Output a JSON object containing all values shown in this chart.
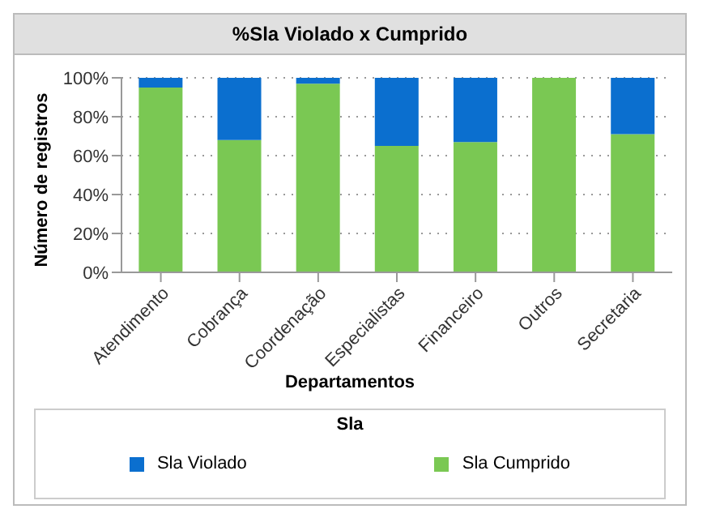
{
  "chart_data": {
    "type": "bar",
    "title": "%Sla Violado x Cumprido",
    "xlabel": "Departamentos",
    "ylabel": "Número de registros",
    "legend_title": "Sla",
    "categories": [
      "Atendimento",
      "Cobrança",
      "Coordenação",
      "Especialistas",
      "Financeiro",
      "Outros",
      "Secretaria"
    ],
    "series": [
      {
        "name": "Sla Cumprido",
        "color": "#7ac853",
        "values": [
          95,
          68,
          97,
          65,
          67,
          100,
          71
        ]
      },
      {
        "name": "Sla Violado",
        "color": "#0b6fcf",
        "values": [
          5,
          32,
          3,
          35,
          33,
          0,
          29
        ]
      }
    ],
    "stacked": true,
    "ylim": [
      0,
      100
    ],
    "yticks": [
      {
        "value": 0,
        "label": "0%"
      },
      {
        "value": 20,
        "label": "20%"
      },
      {
        "value": 40,
        "label": "40%"
      },
      {
        "value": 60,
        "label": "60%"
      },
      {
        "value": 80,
        "label": "80%"
      },
      {
        "value": 100,
        "label": "100%"
      }
    ],
    "grid": "y",
    "legend": "bottom"
  }
}
